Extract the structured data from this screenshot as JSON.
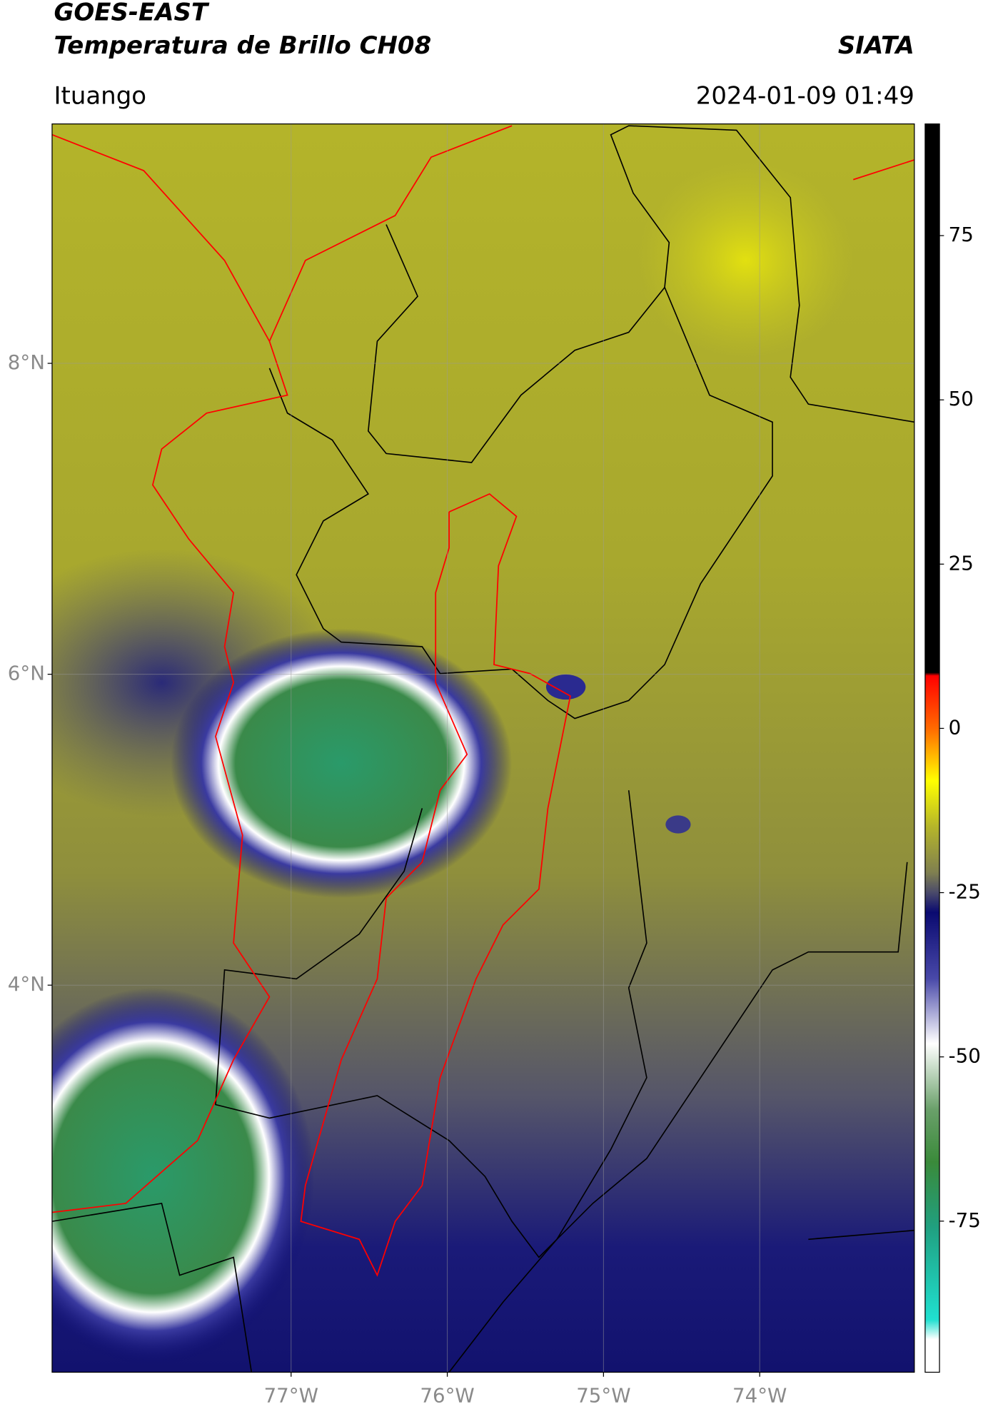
{
  "header": {
    "title": "GOES-EAST",
    "subtitle": "Temperatura de Brillo CH08",
    "brand": "SIATA",
    "location": "Ituango",
    "datetime": "2024-01-09 01:49"
  },
  "map": {
    "xlim": [
      -78.53,
      -73.01
    ],
    "ylim": [
      1.51,
      9.54
    ],
    "xticks": [
      {
        "value": -77,
        "label": "77°W"
      },
      {
        "value": -76,
        "label": "76°W"
      },
      {
        "value": -75,
        "label": "75°W"
      },
      {
        "value": -74,
        "label": "74°W"
      }
    ],
    "yticks": [
      {
        "value": 8,
        "label": "8°N"
      },
      {
        "value": 6,
        "label": "6°N"
      },
      {
        "value": 4,
        "label": "4°N"
      }
    ],
    "grid": true
  },
  "colorbar": {
    "clim": [
      -98,
      92
    ],
    "ticks": [
      75,
      50,
      25,
      0,
      -25,
      -50,
      -75
    ],
    "colormap": [
      {
        "value": 92,
        "color": "#000000"
      },
      {
        "value": 8.5,
        "color": "#000000"
      },
      {
        "value": 8,
        "color": "#ff0000"
      },
      {
        "value": 0,
        "color": "#ff6a00"
      },
      {
        "value": -8,
        "color": "#ffff00"
      },
      {
        "value": -15,
        "color": "#b5b52a"
      },
      {
        "value": -22,
        "color": "#7f7f50"
      },
      {
        "value": -25,
        "color": "#4a4a6a"
      },
      {
        "value": -28,
        "color": "#0a0a70"
      },
      {
        "value": -38,
        "color": "#4848a8"
      },
      {
        "value": -48,
        "color": "#ffffff"
      },
      {
        "value": -58,
        "color": "#6aa06a"
      },
      {
        "value": -66,
        "color": "#3a8a3a"
      },
      {
        "value": -76,
        "color": "#20a080"
      },
      {
        "value": -90,
        "color": "#20e0d0"
      },
      {
        "value": -93,
        "color": "#ffffff"
      },
      {
        "value": -98,
        "color": "#ffffff"
      }
    ]
  }
}
